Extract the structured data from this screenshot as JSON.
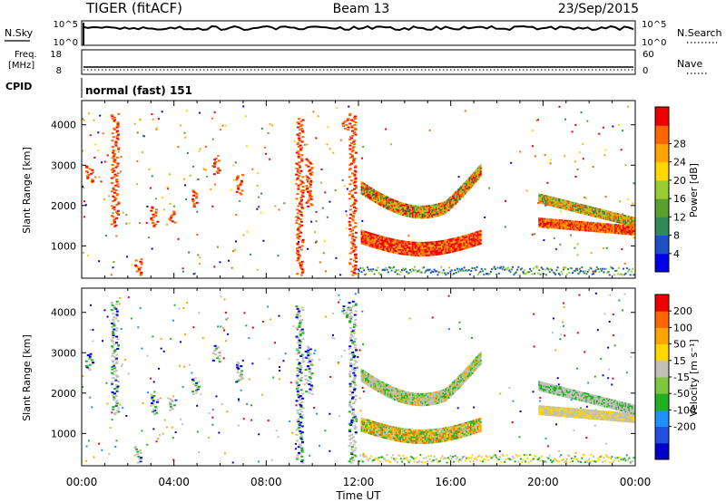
{
  "header": {
    "radar": "TIGER (fitACF)",
    "beam": "Beam 13",
    "date": "23/Sep/2015"
  },
  "nsky_panel": {
    "left_label": "N.Sky",
    "right_label": "N.Search",
    "left_ticks": [
      "10^5",
      "10^0"
    ],
    "right_ticks": [
      "10^5",
      "10^0"
    ]
  },
  "freq_panel": {
    "left_label_1": "Freq.",
    "left_label_2": "[MHz]",
    "right_label": "Nave",
    "left_ticks": [
      "18",
      "8"
    ],
    "right_ticks": [
      "60",
      "0"
    ]
  },
  "cpid": {
    "label": "CPID",
    "value": "normal (fast) 151"
  },
  "chart_data": [
    {
      "type": "heatmap",
      "ylabel": "Slant Range [km]",
      "x_ticks": [
        "00:00",
        "04:00",
        "08:00",
        "12:00",
        "16:00",
        "20:00",
        "00:00"
      ],
      "y_ticks": [
        1000,
        2000,
        3000,
        4000
      ],
      "ylim": [
        200,
        4600
      ],
      "colorbar": {
        "label": "Power [dB]",
        "ticks": [
          "4",
          "8",
          "12",
          "16",
          "20",
          "24",
          "28"
        ],
        "colors": [
          "#0000ee",
          "#1d4fc7",
          "#2e8b57",
          "#5aa02c",
          "#9acd32",
          "#ffd700",
          "#ffa500",
          "#ff6600",
          "#ee0000"
        ]
      }
    },
    {
      "type": "heatmap",
      "ylabel": "Slant Range [km]",
      "xlabel": "Time UT",
      "x_ticks": [
        "00:00",
        "04:00",
        "08:00",
        "12:00",
        "16:00",
        "20:00",
        "00:00"
      ],
      "y_ticks": [
        1000,
        2000,
        3000,
        4000
      ],
      "ylim": [
        200,
        4600
      ],
      "colorbar": {
        "label": "Velocity [m s⁻¹]",
        "ticks": [
          "200",
          "100",
          "50",
          "15",
          "-15",
          "-50",
          "-100",
          "-200"
        ],
        "colors": [
          "#0000cc",
          "#2050e0",
          "#1e90ff",
          "#20b020",
          "#7cc83c",
          "#c0c0b8",
          "#ffd700",
          "#ffa500",
          "#ff6600",
          "#ee0000"
        ]
      }
    }
  ]
}
